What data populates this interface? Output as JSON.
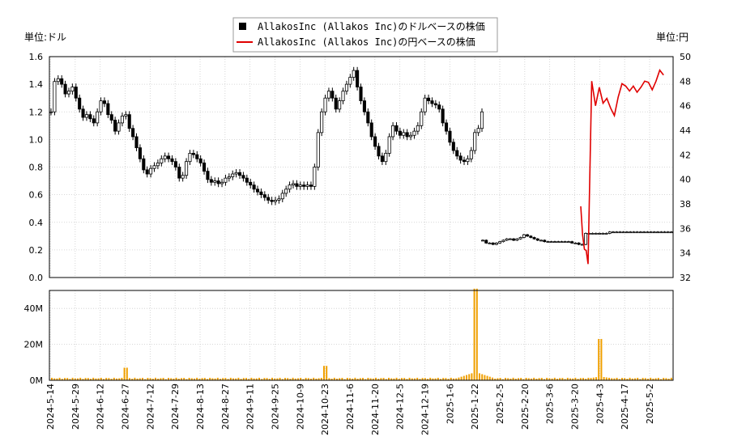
{
  "chart_data": {
    "type": "candlestick+line+bar",
    "legend": [
      {
        "label": "AllakosInc (Allakos Inc)のドルベースの株価",
        "color": "#000000",
        "marker": "square"
      },
      {
        "label": "AllakosInc (Allakos Inc)の円ベースの株価",
        "color": "#e00000",
        "marker": "line"
      }
    ],
    "left_unit": "単位:ドル",
    "right_unit": "単位:円",
    "left_axis": {
      "range": [
        0,
        1.6
      ],
      "ticks": [
        "0.0",
        "0.2",
        "0.4",
        "0.6",
        "0.8",
        "1.0",
        "1.2",
        "1.4",
        "1.6"
      ]
    },
    "right_axis": {
      "range": [
        32,
        50
      ],
      "ticks": [
        "32",
        "34",
        "36",
        "38",
        "40",
        "42",
        "44",
        "46",
        "48",
        "50"
      ]
    },
    "volume_axis": {
      "range": [
        0,
        50
      ],
      "ticks": [
        "0M",
        "20M",
        "40M"
      ]
    },
    "x_ticks": [
      "2024-5-14",
      "2024-5-29",
      "2024-6-12",
      "2024-6-27",
      "2024-7-12",
      "2024-7-29",
      "2024-8-13",
      "2024-8-27",
      "2024-9-11",
      "2024-9-25",
      "2024-10-9",
      "2024-10-23",
      "2024-11-6",
      "2024-11-20",
      "2024-12-5",
      "2024-12-19",
      "2025-1-6",
      "2025-1-22",
      "2025-2-5",
      "2025-2-20",
      "2025-3-6",
      "2025-3-20",
      "2025-4-3",
      "2025-4-17",
      "2025-5-2"
    ],
    "usd_price": {
      "segment1": [
        1.2,
        1.42,
        1.44,
        1.4,
        1.33,
        1.35,
        1.38,
        1.3,
        1.22,
        1.16,
        1.18,
        1.15,
        1.12,
        1.2,
        1.28,
        1.26,
        1.18,
        1.14,
        1.06,
        1.12,
        1.17,
        1.18,
        1.08,
        1.02,
        0.94,
        0.86,
        0.78,
        0.75,
        0.79,
        0.81,
        0.83,
        0.86,
        0.88,
        0.86,
        0.84,
        0.8,
        0.72,
        0.74,
        0.84,
        0.9,
        0.89,
        0.86,
        0.83,
        0.77,
        0.71,
        0.69,
        0.7,
        0.68,
        0.69,
        0.72,
        0.73,
        0.75,
        0.76,
        0.74,
        0.72,
        0.69,
        0.67,
        0.64,
        0.62,
        0.6,
        0.58,
        0.56,
        0.55,
        0.56,
        0.57,
        0.61,
        0.64,
        0.67,
        0.68,
        0.66,
        0.67,
        0.66,
        0.67,
        0.66,
        0.8,
        1.05,
        1.2,
        1.3,
        1.35,
        1.3,
        1.22,
        1.28,
        1.35,
        1.4,
        1.45,
        1.5,
        1.38,
        1.28,
        1.2,
        1.12,
        1.02,
        0.95,
        0.88,
        0.84,
        0.9,
        1.02,
        1.1,
        1.06,
        1.03,
        1.05,
        1.02,
        1.03,
        1.06,
        1.1,
        1.2,
        1.3,
        1.28,
        1.26,
        1.25,
        1.22,
        1.12,
        1.06,
        0.98,
        0.92,
        0.88,
        0.85,
        0.84,
        0.86,
        0.92,
        1.05,
        1.08,
        1.2
      ],
      "segment2": [
        0.27,
        0.25,
        0.25,
        0.24,
        0.25,
        0.26,
        0.27,
        0.28,
        0.28,
        0.27,
        0.28,
        0.29,
        0.31,
        0.3,
        0.29,
        0.28,
        0.27,
        0.27,
        0.26,
        0.26,
        0.26,
        0.26,
        0.26,
        0.26,
        0.26,
        0.26,
        0.25,
        0.25,
        0.24,
        0.24,
        0.32,
        0.32,
        0.32,
        0.32,
        0.32,
        0.32,
        0.32,
        0.33,
        0.33,
        0.33,
        0.33,
        0.33,
        0.33,
        0.33,
        0.33,
        0.33,
        0.33,
        0.33,
        0.33,
        0.33,
        0.33,
        0.33,
        0.33,
        0.33,
        0.33,
        0.33
      ]
    },
    "jpy_price": [
      37.8,
      35.5,
      34.3,
      34.2,
      33.1,
      48.0,
      46.0,
      47.5,
      46.2,
      46.6,
      45.8,
      45.2,
      46.7,
      47.8,
      47.6,
      47.2,
      47.6,
      47.1,
      47.5,
      48.0,
      47.9,
      47.3,
      48.0,
      48.9,
      48.5
    ],
    "volume_millions_peaks": [
      {
        "label": "2024-6-27",
        "value": 7
      },
      {
        "label": "2024-10-23",
        "value": 8
      },
      {
        "label": "2025-1-22",
        "value": 51
      },
      {
        "label": "2025-4-3",
        "value": 23
      }
    ]
  }
}
